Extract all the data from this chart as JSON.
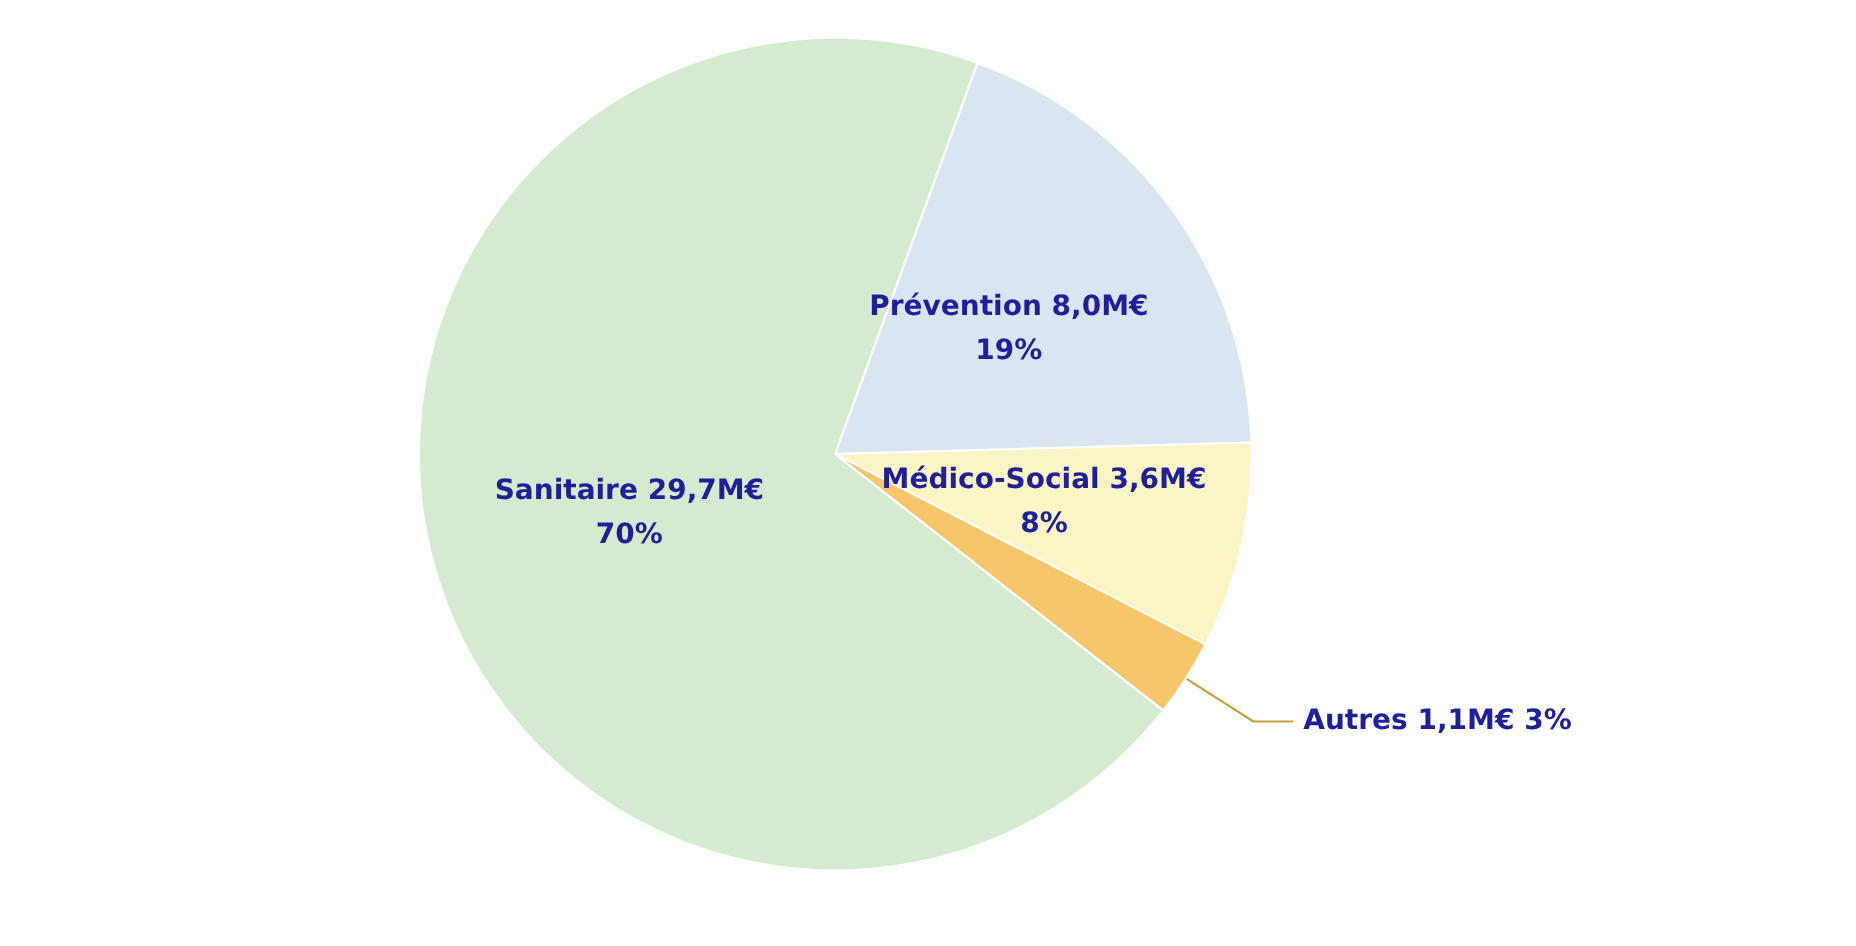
{
  "chart_data": {
    "type": "pie",
    "categories": [
      "Sanitaire",
      "Prévention",
      "Médico-Social",
      "Autres"
    ],
    "values": [
      70,
      19,
      8,
      3
    ],
    "value_labels": [
      "29,7M€\n70%",
      "8,0M€\n19%",
      "3,6M€\n8%",
      "1,1M€ 3%"
    ],
    "colors": [
      "#d5ebcf",
      "#d9e6f2",
      "#fbf5c6",
      "#f6c66b"
    ],
    "legend": false
  }
}
